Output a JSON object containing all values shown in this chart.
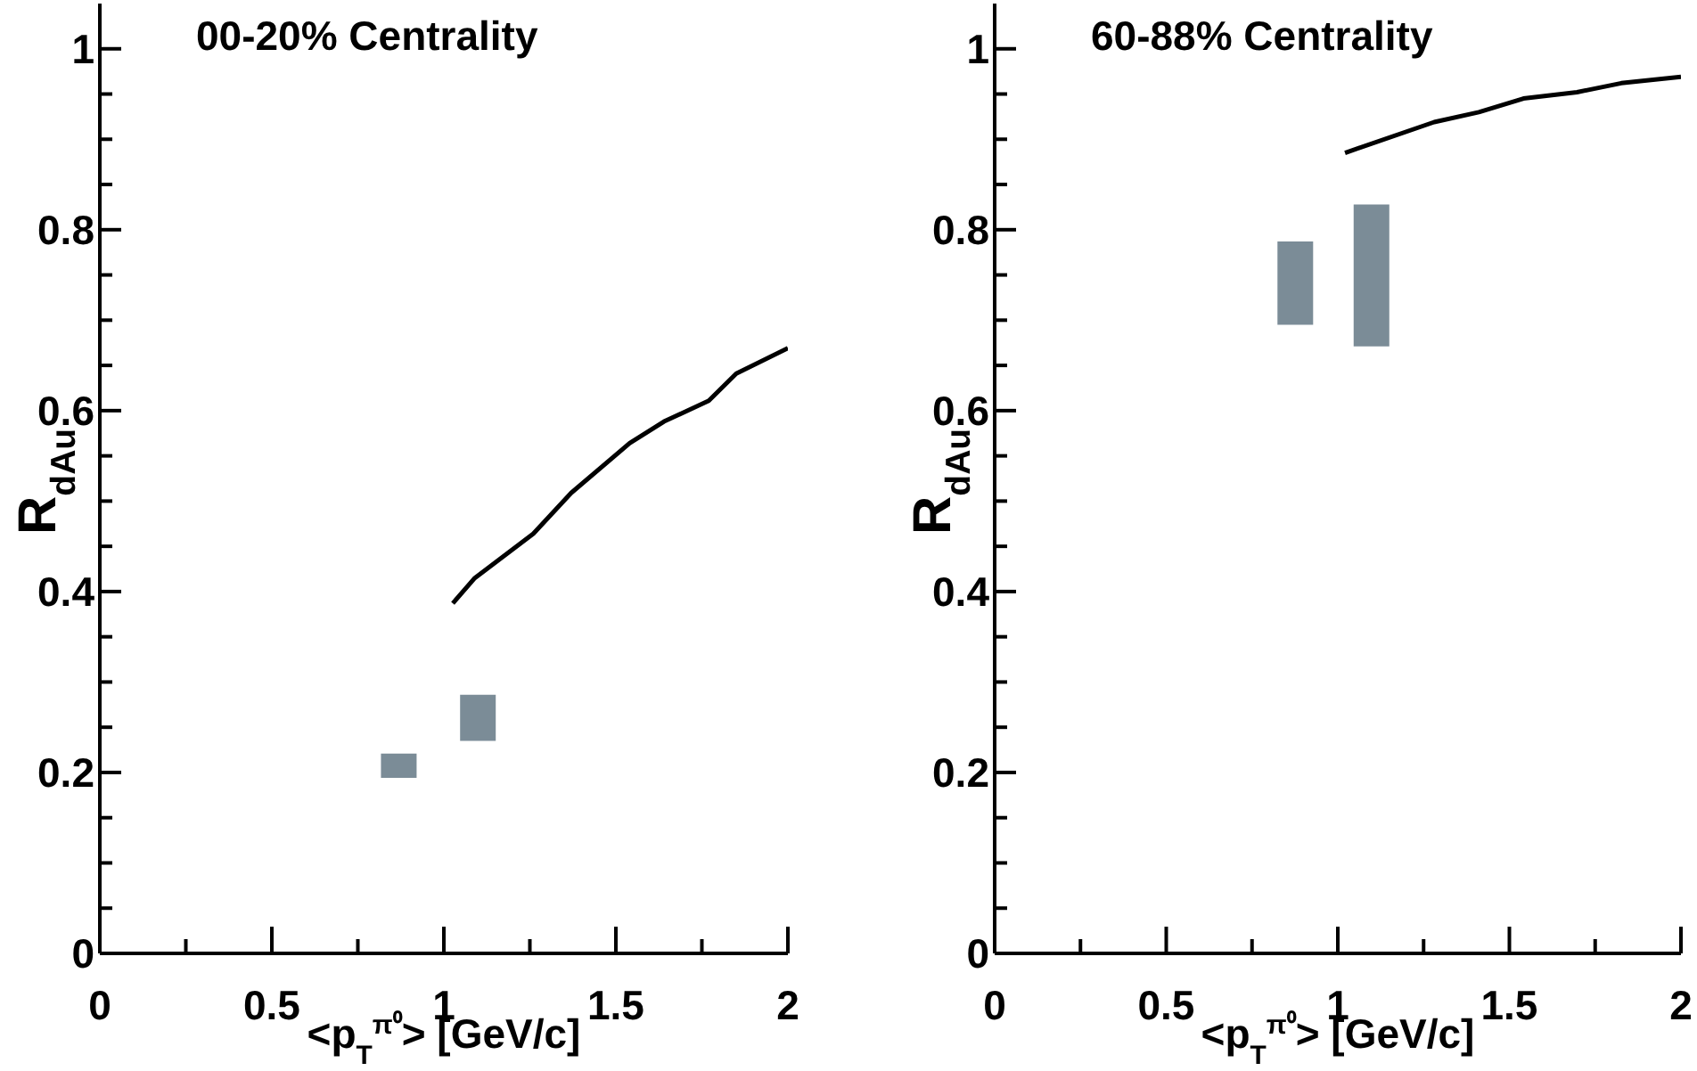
{
  "chart_data": [
    {
      "type": "line",
      "title": "00-20% Centrality",
      "xlabel": "<p$_{T}$$^{π⁰}$> [GeV/c]",
      "ylabel": "R$_{dAu}$",
      "xlim": [
        0,
        2
      ],
      "ylim": [
        0,
        1.05
      ],
      "xticks": [
        0,
        {
          "value": 0.25,
          "label": null
        },
        0.5,
        {
          "value": 0.75,
          "label": null
        },
        1,
        {
          "value": 1.25,
          "label": null
        },
        1.5,
        {
          "value": 1.75,
          "label": null
        },
        2
      ],
      "yticks": [
        0,
        {
          "value": 0.05,
          "label": null
        },
        {
          "value": 0.1,
          "label": null
        },
        {
          "value": 0.15,
          "label": null
        },
        0.2,
        {
          "value": 0.25,
          "label": null
        },
        {
          "value": 0.3,
          "label": null
        },
        {
          "value": 0.35,
          "label": null
        },
        0.4,
        {
          "value": 0.45,
          "label": null
        },
        {
          "value": 0.5,
          "label": null
        },
        {
          "value": 0.55,
          "label": null
        },
        0.6,
        {
          "value": 0.65,
          "label": null
        },
        {
          "value": 0.7,
          "label": null
        },
        {
          "value": 0.75,
          "label": null
        },
        0.8,
        {
          "value": 0.85,
          "label": null
        },
        {
          "value": 0.9,
          "label": null
        },
        {
          "value": 0.95,
          "label": null
        },
        1
      ],
      "series": [
        {
          "type": "bar",
          "color": "#7b8c97",
          "x": [
            0.87,
            1.1
          ],
          "base": [
            0.194,
            0.235
          ],
          "values": [
            0.027,
            0.051
          ]
        },
        {
          "color": "#000000",
          "x": [
            1.026,
            1.09,
            1.26,
            1.37,
            1.54,
            1.64,
            1.77,
            1.85,
            2.0
          ],
          "values": [
            0.387,
            0.415,
            0.464,
            0.509,
            0.564,
            0.588,
            0.611,
            0.641,
            0.669
          ]
        }
      ]
    },
    {
      "type": "line",
      "title": "60-88% Centrality",
      "xlabel": "<p$_{T}$$^{π⁰}$> [GeV/c]",
      "ylabel": "R$_{dAu}$",
      "xlim": [
        0,
        2
      ],
      "ylim": [
        0,
        1.05
      ],
      "xticks": [
        0,
        {
          "value": 0.25,
          "label": null
        },
        0.5,
        {
          "value": 0.75,
          "label": null
        },
        1,
        {
          "value": 1.25,
          "label": null
        },
        1.5,
        {
          "value": 1.75,
          "label": null
        },
        2
      ],
      "yticks": [
        0,
        {
          "value": 0.05,
          "label": null
        },
        {
          "value": 0.1,
          "label": null
        },
        {
          "value": 0.15,
          "label": null
        },
        0.2,
        {
          "value": 0.25,
          "label": null
        },
        {
          "value": 0.3,
          "label": null
        },
        {
          "value": 0.35,
          "label": null
        },
        0.4,
        {
          "value": 0.45,
          "label": null
        },
        {
          "value": 0.5,
          "label": null
        },
        {
          "value": 0.55,
          "label": null
        },
        0.6,
        {
          "value": 0.65,
          "label": null
        },
        {
          "value": 0.7,
          "label": null
        },
        {
          "value": 0.75,
          "label": null
        },
        0.8,
        {
          "value": 0.85,
          "label": null
        },
        {
          "value": 0.9,
          "label": null
        },
        {
          "value": 0.95,
          "label": null
        },
        1
      ],
      "series": [
        {
          "type": "bar",
          "color": "#7b8c97",
          "x": [
            0.878,
            1.1
          ],
          "base": [
            0.695,
            0.671
          ],
          "values": [
            0.092,
            0.157
          ]
        },
        {
          "color": "#000000",
          "x": [
            1.021,
            1.281,
            1.411,
            1.541,
            1.697,
            1.826,
            2.0
          ],
          "values": [
            0.885,
            0.919,
            0.93,
            0.945,
            0.952,
            0.962,
            0.969
          ]
        }
      ]
    }
  ]
}
